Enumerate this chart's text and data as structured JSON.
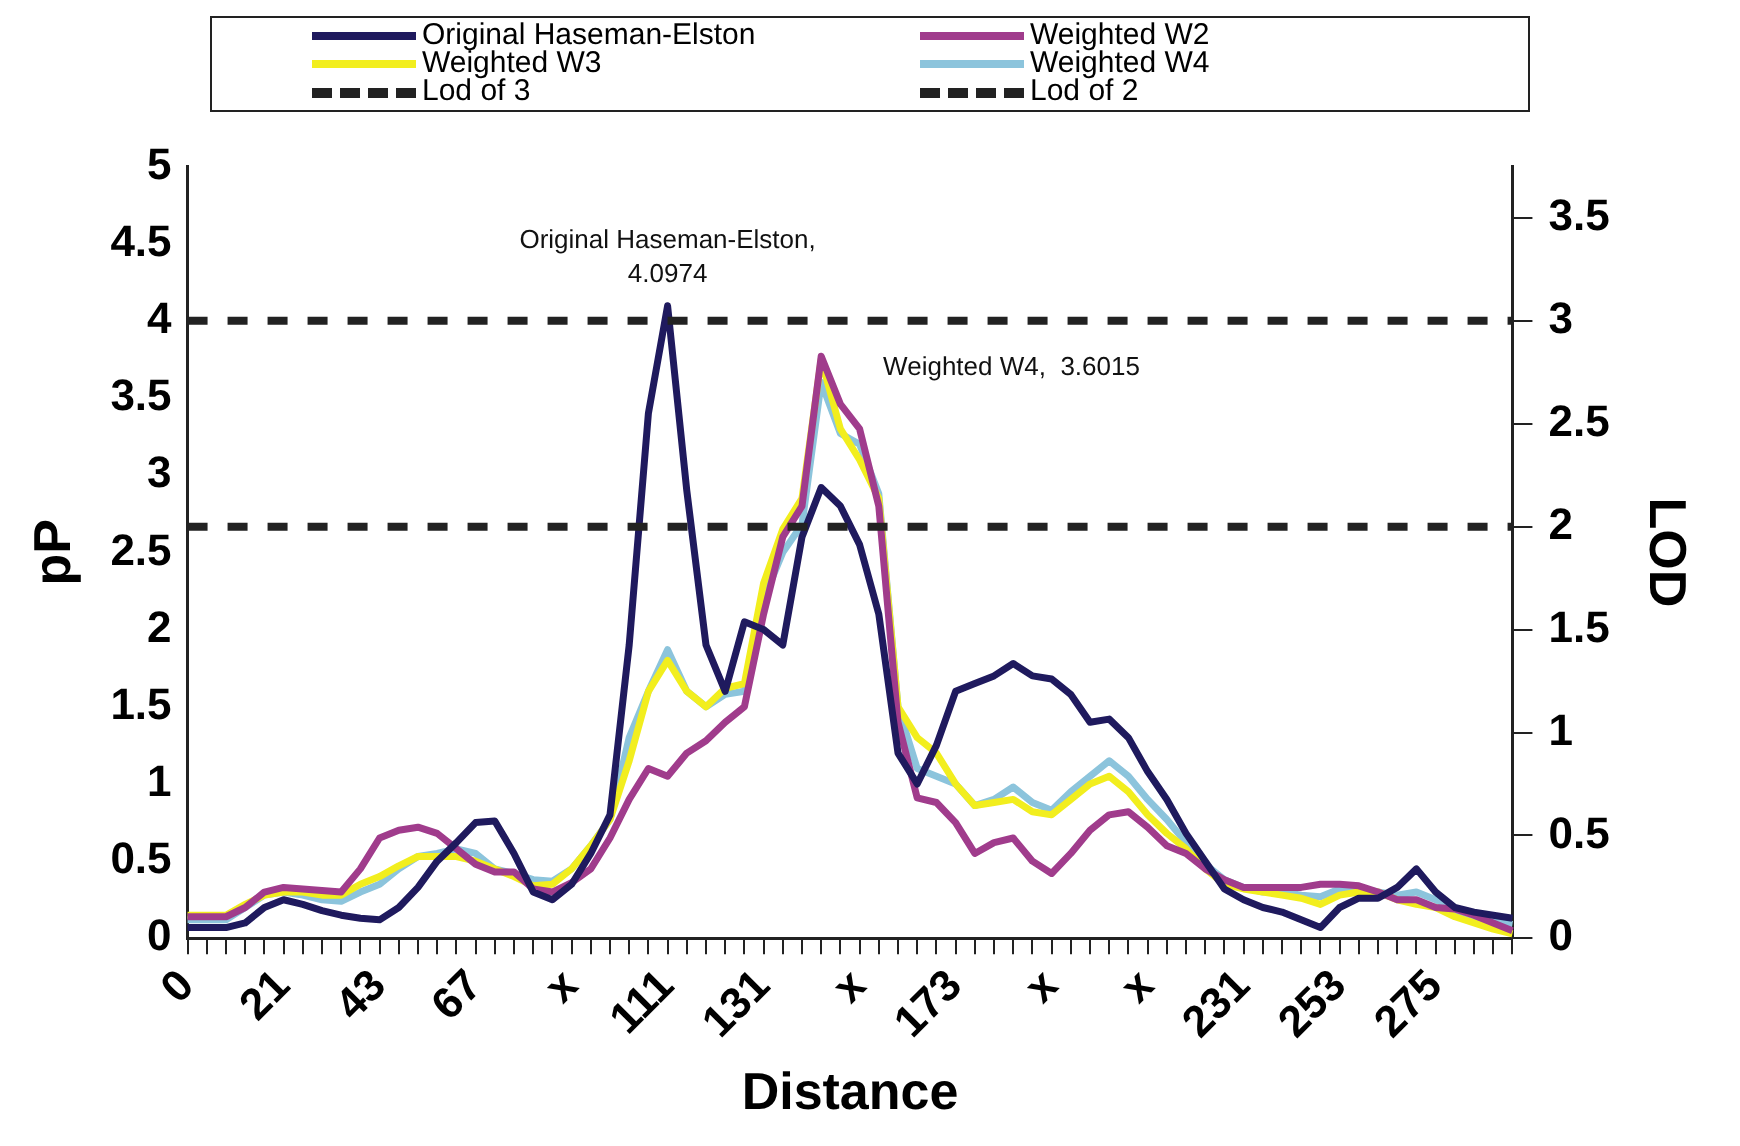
{
  "chart_data": {
    "type": "line",
    "xlabel": "Distance",
    "ylabel": "pP",
    "y2label": "LOD",
    "categories": [
      "0",
      null,
      null,
      null,
      null,
      "21",
      null,
      null,
      null,
      null,
      "43",
      null,
      null,
      null,
      null,
      "67",
      null,
      null,
      null,
      null,
      "x",
      null,
      null,
      null,
      null,
      "111",
      null,
      null,
      null,
      null,
      "131",
      null,
      null,
      null,
      null,
      "x",
      null,
      null,
      null,
      null,
      "173",
      null,
      null,
      null,
      null,
      "x",
      null,
      null,
      null,
      null,
      "x",
      null,
      null,
      null,
      null,
      "231",
      null,
      null,
      null,
      null,
      "253",
      null,
      null,
      null,
      null,
      "275",
      null,
      null,
      null,
      null
    ],
    "series": [
      {
        "name": "Original Haseman-Elston",
        "color": "#1f1a5e",
        "values": [
          0.07,
          0.07,
          0.07,
          0.1,
          0.2,
          0.25,
          0.22,
          0.18,
          0.15,
          0.13,
          0.12,
          0.2,
          0.33,
          0.5,
          0.62,
          0.75,
          0.76,
          0.55,
          0.3,
          0.25,
          0.35,
          0.55,
          0.8,
          1.9,
          3.4,
          4.0974,
          2.9,
          1.9,
          1.6,
          2.05,
          2.0,
          1.9,
          2.6,
          2.92,
          2.8,
          2.55,
          2.1,
          1.2,
          1.0,
          1.25,
          1.6,
          1.65,
          1.7,
          1.78,
          1.7,
          1.68,
          1.58,
          1.4,
          1.42,
          1.3,
          1.08,
          0.9,
          0.68,
          0.5,
          0.32,
          0.25,
          0.2,
          0.17,
          0.12,
          0.07,
          0.2,
          0.26,
          0.26,
          0.33,
          0.45,
          0.3,
          0.2,
          0.17,
          0.15,
          0.13
        ]
      },
      {
        "name": "Weighted W2",
        "color": "#a03c8c",
        "values": [
          0.14,
          0.14,
          0.14,
          0.2,
          0.3,
          0.33,
          0.32,
          0.31,
          0.3,
          0.45,
          0.65,
          0.7,
          0.72,
          0.68,
          0.58,
          0.48,
          0.43,
          0.43,
          0.32,
          0.3,
          0.36,
          0.45,
          0.65,
          0.9,
          1.1,
          1.05,
          1.2,
          1.28,
          1.4,
          1.5,
          2.1,
          2.6,
          2.8,
          3.77,
          3.46,
          3.3,
          2.8,
          1.4,
          0.91,
          0.88,
          0.75,
          0.55,
          0.62,
          0.65,
          0.5,
          0.42,
          0.55,
          0.7,
          0.8,
          0.82,
          0.72,
          0.6,
          0.55,
          0.45,
          0.38,
          0.33,
          0.33,
          0.33,
          0.33,
          0.35,
          0.35,
          0.34,
          0.3,
          0.25,
          0.25,
          0.2,
          0.19,
          0.15,
          0.1,
          0.05
        ]
      },
      {
        "name": "Weighted W3",
        "color": "#f2ee1e",
        "values": [
          0.15,
          0.15,
          0.15,
          0.22,
          0.28,
          0.3,
          0.3,
          0.28,
          0.28,
          0.35,
          0.4,
          0.47,
          0.53,
          0.53,
          0.53,
          0.5,
          0.45,
          0.4,
          0.34,
          0.35,
          0.45,
          0.6,
          0.77,
          1.15,
          1.6,
          1.8,
          1.6,
          1.5,
          1.62,
          1.65,
          2.3,
          2.65,
          2.85,
          3.75,
          3.3,
          3.1,
          2.85,
          1.5,
          1.3,
          1.2,
          1.0,
          0.86,
          0.88,
          0.9,
          0.82,
          0.8,
          0.9,
          1.0,
          1.05,
          0.95,
          0.8,
          0.68,
          0.58,
          0.45,
          0.35,
          0.32,
          0.3,
          0.28,
          0.26,
          0.22,
          0.28,
          0.3,
          0.3,
          0.25,
          0.22,
          0.2,
          0.14,
          0.1,
          0.06,
          0.03
        ]
      },
      {
        "name": "Weighted W4",
        "color": "#8cc4dc",
        "values": [
          0.12,
          0.12,
          0.12,
          0.2,
          0.28,
          0.3,
          0.28,
          0.25,
          0.24,
          0.3,
          0.35,
          0.45,
          0.53,
          0.55,
          0.58,
          0.55,
          0.45,
          0.42,
          0.38,
          0.37,
          0.45,
          0.6,
          0.77,
          1.3,
          1.6,
          1.87,
          1.6,
          1.5,
          1.58,
          1.6,
          2.2,
          2.5,
          2.68,
          3.6015,
          3.27,
          3.2,
          2.88,
          1.5,
          1.1,
          1.05,
          1.0,
          0.86,
          0.9,
          0.98,
          0.88,
          0.83,
          0.95,
          1.05,
          1.15,
          1.05,
          0.9,
          0.77,
          0.62,
          0.48,
          0.38,
          0.33,
          0.3,
          0.3,
          0.28,
          0.27,
          0.32,
          0.33,
          0.3,
          0.28,
          0.3,
          0.25,
          0.18,
          0.14,
          0.11,
          0.09
        ]
      }
    ],
    "ylim": [
      0,
      5
    ],
    "yticks": [
      0,
      0.5,
      1,
      1.5,
      2,
      2.5,
      3,
      3.5,
      4,
      4.5,
      5
    ],
    "y2lim": [
      0,
      3.75
    ],
    "y2ticks": [
      0,
      0.5,
      1,
      1.5,
      2,
      2.5,
      3,
      3.5
    ],
    "ref_lines": [
      {
        "axis": "y2",
        "value": 3,
        "label": "Lod of 3",
        "color": "#222222",
        "line_style": "dashed"
      },
      {
        "axis": "y2",
        "value": 2,
        "label": "Lod of 2",
        "color": "#222222",
        "line_style": "dashed"
      }
    ],
    "annotations": [
      {
        "text": "Original Haseman-Elston,\n4.0974",
        "x": "111",
        "y": 4.0974
      },
      "Weighted W4,  3.6015"
    ],
    "grid": false,
    "legend": "top",
    "marker": "none",
    "line_style": "solid"
  }
}
